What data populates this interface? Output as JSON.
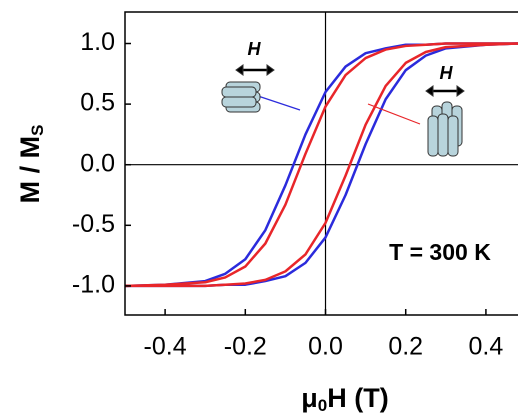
{
  "chart_data": {
    "type": "line",
    "x_label": [
      "μ",
      "0",
      "H (T)"
    ],
    "y_label": [
      "M / M",
      "S"
    ],
    "annotation": "T = 300 K",
    "inset_labels": [
      "H",
      "H"
    ],
    "xlim": [
      -0.5,
      0.48
    ],
    "ylim": [
      -1.24,
      1.26
    ],
    "xticks": [
      -0.4,
      -0.2,
      {
        "value": 0,
        "label": "0.0"
      },
      0.2,
      0.4
    ],
    "yticks": [
      {
        "value": 1,
        "label": "1.0"
      },
      0.5,
      {
        "value": 0,
        "label": "0.0"
      },
      -0.5,
      {
        "value": -1,
        "label": "-1.0"
      }
    ],
    "series": [
      {
        "color": "#2b2bdc",
        "x": [
          0.48,
          0.4,
          0.3,
          0.25,
          0.2,
          0.15,
          0.1,
          0.05,
          0,
          -0.05,
          -0.1,
          -0.15,
          -0.2,
          -0.25,
          -0.3,
          -0.4,
          -0.5
        ],
        "values": [
          1.0,
          1.0,
          1.0,
          0.99,
          0.99,
          0.96,
          0.92,
          0.81,
          0.6,
          0.25,
          -0.17,
          -0.54,
          -0.78,
          -0.9,
          -0.96,
          -0.99,
          -1.0
        ]
      },
      {
        "color": "#2b2bdc",
        "x": [
          -0.5,
          -0.4,
          -0.3,
          -0.25,
          -0.2,
          -0.15,
          -0.1,
          -0.05,
          0,
          0.05,
          0.1,
          0.15,
          0.2,
          0.25,
          0.3,
          0.4,
          0.48
        ],
        "values": [
          -1.0,
          -1.0,
          -1.0,
          -0.99,
          -0.99,
          -0.96,
          -0.92,
          -0.81,
          -0.6,
          -0.25,
          0.17,
          0.54,
          0.78,
          0.9,
          0.96,
          0.99,
          1.0
        ]
      },
      {
        "color": "#e8262a",
        "x": [
          0.48,
          0.4,
          0.3,
          0.25,
          0.2,
          0.15,
          0.1,
          0.05,
          0,
          -0.05,
          -0.1,
          -0.15,
          -0.2,
          -0.25,
          -0.3,
          -0.4,
          -0.5
        ],
        "values": [
          1.0,
          1.0,
          1.0,
          0.99,
          0.98,
          0.95,
          0.88,
          0.74,
          0.48,
          0.09,
          -0.33,
          -0.65,
          -0.84,
          -0.93,
          -0.97,
          -0.99,
          -1.0
        ]
      },
      {
        "color": "#e8262a",
        "x": [
          -0.5,
          -0.4,
          -0.3,
          -0.25,
          -0.2,
          -0.15,
          -0.1,
          -0.05,
          0,
          0.05,
          0.1,
          0.15,
          0.2,
          0.25,
          0.3,
          0.4,
          0.48
        ],
        "values": [
          -1.0,
          -1.0,
          -1.0,
          -0.99,
          -0.98,
          -0.95,
          -0.88,
          -0.74,
          -0.48,
          -0.09,
          0.33,
          0.65,
          0.84,
          0.93,
          0.97,
          0.99,
          1.0
        ]
      }
    ]
  }
}
